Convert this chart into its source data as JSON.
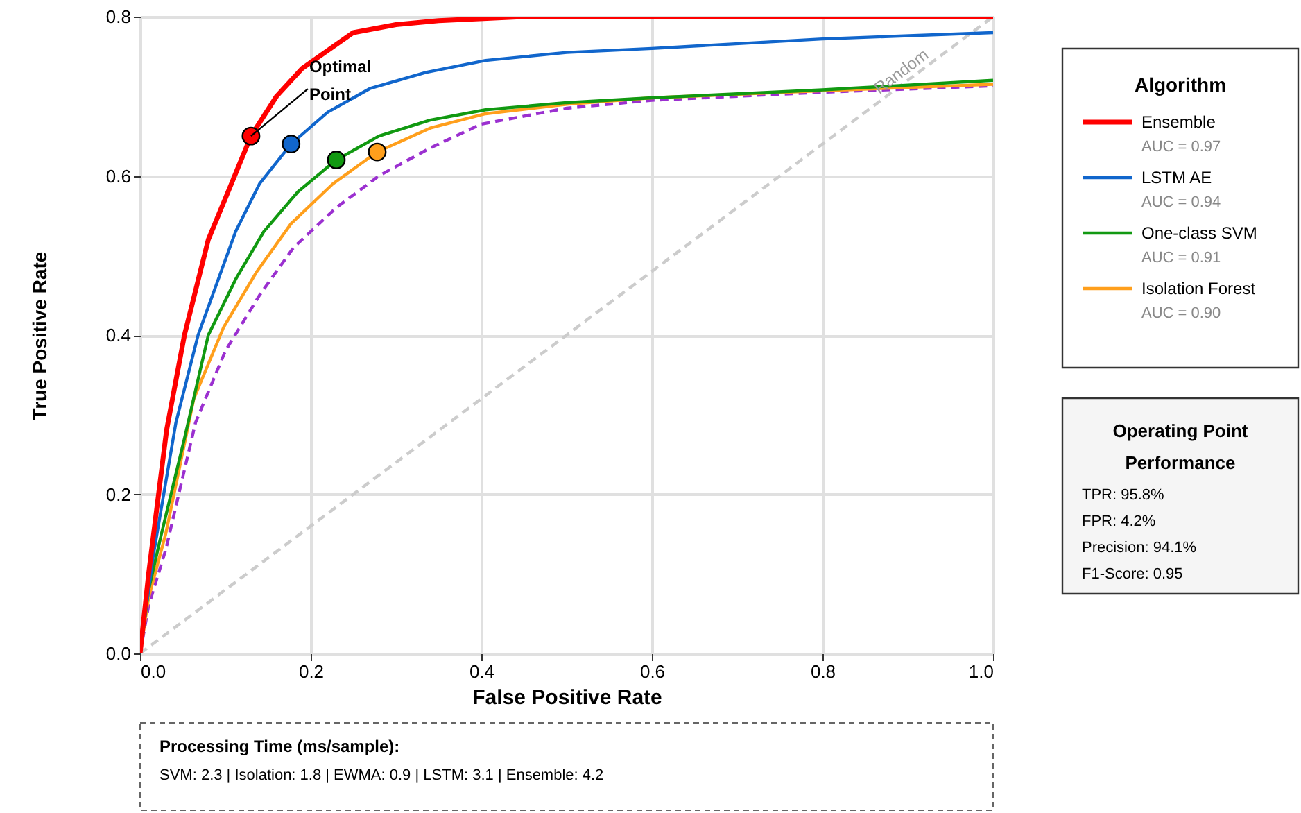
{
  "chart_data": {
    "type": "line",
    "xlabel": "False Positive Rate",
    "ylabel": "True Positive Rate",
    "legend_title": "Algorithm",
    "xlim": [
      0,
      1
    ],
    "ylim": [
      0,
      0.8
    ],
    "xticks": [
      {
        "value": 0,
        "label": "0.0"
      },
      {
        "value": 0.2,
        "label": "0.2"
      },
      {
        "value": 0.4,
        "label": "0.4"
      },
      {
        "value": 0.6,
        "label": "0.6"
      },
      {
        "value": 0.8,
        "label": "0.8"
      },
      {
        "value": 1,
        "label": "1.0"
      }
    ],
    "yticks": [
      {
        "value": 0,
        "label": "0.0"
      },
      {
        "value": 0.2,
        "label": "0.2"
      },
      {
        "value": 0.4,
        "label": "0.4"
      },
      {
        "value": 0.6,
        "label": "0.6"
      },
      {
        "value": 0.8,
        "label": "0.8"
      }
    ],
    "grid": true,
    "legend": "right",
    "series": [
      {
        "name": "Random",
        "color": "#cccccc",
        "line_style": "dashed",
        "x": [
          0,
          1
        ],
        "values": [
          0,
          0.8
        ]
      },
      {
        "color": "#9b30d0",
        "line_style": "dashed",
        "x": [
          0,
          0.01,
          0.03,
          0.065,
          0.1,
          0.14,
          0.18,
          0.23,
          0.28,
          0.34,
          0.4,
          0.5,
          0.6,
          0.8,
          1.0
        ],
        "values": [
          0,
          0.06,
          0.13,
          0.29,
          0.38,
          0.45,
          0.51,
          0.56,
          0.6,
          0.635,
          0.665,
          0.685,
          0.695,
          0.705,
          0.713
        ]
      },
      {
        "name": "Isolation Forest\nAUC = 0.90",
        "color": "#ff9f1c",
        "line_style": "solid",
        "x": [
          0,
          0.01,
          0.03,
          0.063,
          0.098,
          0.137,
          0.177,
          0.226,
          0.278,
          0.34,
          0.405,
          0.5,
          0.6,
          0.8,
          1.0
        ],
        "values": [
          0,
          0.07,
          0.15,
          0.32,
          0.41,
          0.48,
          0.54,
          0.59,
          0.63,
          0.66,
          0.678,
          0.69,
          0.698,
          0.707,
          0.715
        ]
      },
      {
        "name": "One-class SVM\nAUC = 0.91",
        "color": "#119911",
        "line_style": "solid",
        "x": [
          0,
          0.01,
          0.025,
          0.052,
          0.08,
          0.112,
          0.145,
          0.185,
          0.23,
          0.28,
          0.34,
          0.405,
          0.5,
          0.6,
          0.8,
          1.0
        ],
        "values": [
          0,
          0.08,
          0.15,
          0.27,
          0.4,
          0.47,
          0.53,
          0.58,
          0.62,
          0.65,
          0.67,
          0.683,
          0.692,
          0.698,
          0.708,
          0.72
        ]
      },
      {
        "name": "LSTM AE\nAUC = 0.94",
        "color": "#1166cc",
        "line_style": "solid",
        "x": [
          0,
          0.015,
          0.042,
          0.068,
          0.112,
          0.14,
          0.177,
          0.22,
          0.27,
          0.335,
          0.405,
          0.5,
          0.6,
          0.8,
          1.0
        ],
        "values": [
          0,
          0.12,
          0.29,
          0.4,
          0.53,
          0.59,
          0.64,
          0.68,
          0.71,
          0.73,
          0.745,
          0.755,
          0.76,
          0.772,
          0.78
        ]
      },
      {
        "name": "Ensemble\nAUC = 0.97",
        "color": "#ff0000",
        "line_style": "solid",
        "x": [
          0,
          0.01,
          0.031,
          0.052,
          0.08,
          0.107,
          0.13,
          0.16,
          0.19,
          0.25,
          0.3,
          0.35,
          0.45,
          1.0
        ],
        "values": [
          0,
          0.1,
          0.28,
          0.4,
          0.52,
          0.59,
          0.65,
          0.7,
          0.735,
          0.78,
          0.79,
          0.795,
          0.8,
          0.8
        ]
      },
      {
        "type": "scatter",
        "marker": "circle",
        "x": [
          0.13,
          0.177,
          0.23,
          0.278
        ],
        "values": [
          0.65,
          0.64,
          0.62,
          0.63
        ],
        "colors": [
          "#ff0000",
          "#1166cc",
          "#119911",
          "#ff9f1c"
        ]
      }
    ],
    "annotations": [
      {
        "text": "Optimal Point",
        "x": 0.13,
        "y": 0.65
      },
      "Operating Point Performance",
      "TPR: 95.8%",
      "FPR: 4.2%",
      "Precision: 94.1%",
      "F1-Score: 0.95",
      "Processing Time (ms/sample):",
      "SVM: 2.3 | Isolation: 1.8 | EWMA: 0.9 | LSTM: 3.1 | Ensemble: 4.2"
    ]
  }
}
